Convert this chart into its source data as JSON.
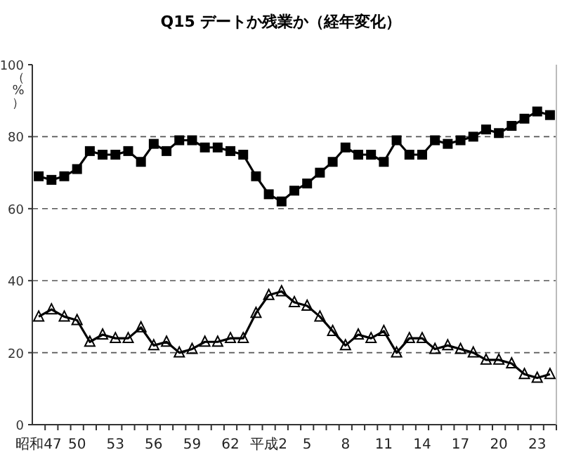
{
  "chart_data": {
    "type": "line",
    "title": "Q15  デートか残業か（経年変化）",
    "ylabel": "（%）",
    "categories": [
      "昭和47",
      null,
      null,
      "50",
      null,
      null,
      "53",
      null,
      null,
      "56",
      null,
      null,
      "59",
      null,
      null,
      "62",
      null,
      null,
      "平成2",
      null,
      null,
      "5",
      null,
      null,
      "8",
      null,
      null,
      "11",
      null,
      null,
      "14",
      null,
      null,
      "17",
      null,
      null,
      "20",
      null,
      null,
      "23",
      null
    ],
    "series": [
      {
        "color": "#000000",
        "marker": "square",
        "values": [
          69,
          68,
          69,
          71,
          76,
          75,
          75,
          76,
          73,
          78,
          76,
          79,
          79,
          77,
          77,
          76,
          75,
          69,
          64,
          62,
          65,
          67,
          70,
          73,
          77,
          75,
          75,
          73,
          79,
          75,
          75,
          79,
          78,
          79,
          80,
          82,
          81,
          83,
          85,
          87,
          86
        ]
      },
      {
        "color": "#000000",
        "marker": "triangle",
        "values": [
          30,
          32,
          30,
          29,
          23,
          25,
          24,
          24,
          27,
          22,
          23,
          20,
          21,
          23,
          23,
          24,
          24,
          31,
          36,
          37,
          34,
          33,
          30,
          26,
          22,
          25,
          24,
          26,
          20,
          24,
          24,
          21,
          22,
          21,
          20,
          18,
          18,
          17,
          14,
          13,
          14
        ]
      }
    ],
    "ylim": [
      0,
      100
    ],
    "yticks": [
      0,
      20,
      40,
      60,
      80,
      100
    ],
    "grid": "y",
    "line_style": "solid"
  }
}
